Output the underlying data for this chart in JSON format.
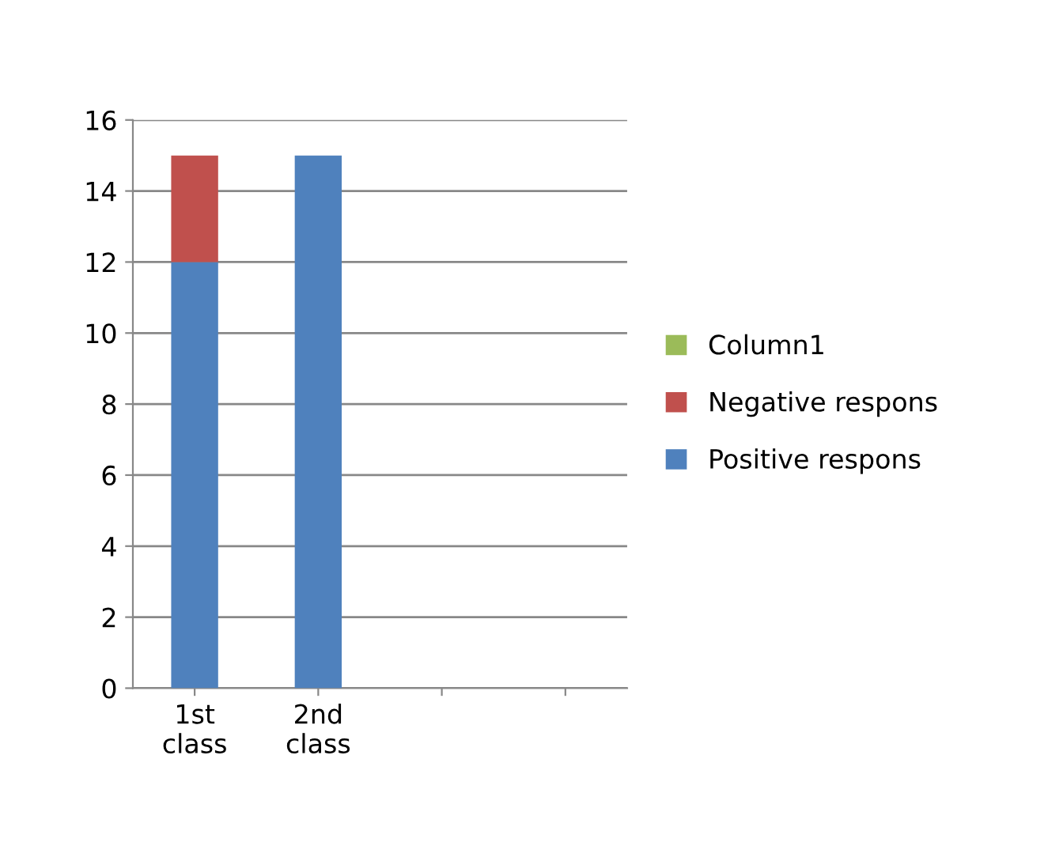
{
  "chart_data": {
    "type": "bar",
    "stacked": true,
    "categories": [
      "1st\nclass",
      "2nd\nclass",
      null,
      null
    ],
    "series": [
      {
        "name": "Positive respons",
        "color": "#4f81bd",
        "values": [
          12,
          15,
          null,
          null
        ]
      },
      {
        "name": "Negative respons",
        "color": "#c0504d",
        "values": [
          3,
          0,
          null,
          null
        ]
      },
      {
        "name": "Column1",
        "color": "#9bbb59",
        "values": [
          null,
          null,
          null,
          null
        ]
      }
    ],
    "ylim": [
      0,
      16
    ],
    "yticks": [
      0,
      2,
      4,
      6,
      8,
      10,
      12,
      14,
      16
    ],
    "grid": "y",
    "legend": "right"
  }
}
